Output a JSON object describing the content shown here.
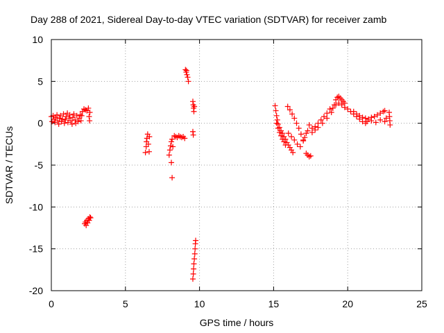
{
  "chart_data": {
    "type": "scatter",
    "title": "Day 288 of 2021, Sidereal Day-to-day VTEC variation (SDTVAR) for receiver zamb",
    "xlabel": "GPS time / hours",
    "ylabel": "SDTVAR / TECUs",
    "xlim": [
      0,
      25
    ],
    "ylim": [
      -20,
      10
    ],
    "xticks": [
      0,
      5,
      10,
      15,
      20,
      25
    ],
    "yticks": [
      -20,
      -15,
      -10,
      -5,
      0,
      5,
      10
    ],
    "grid": true,
    "marker": "+",
    "color": "#ff0000",
    "series": [
      {
        "name": "SDTVAR",
        "points": [
          [
            0.0,
            0.8
          ],
          [
            0.05,
            0.2
          ],
          [
            0.12,
            0.9
          ],
          [
            0.18,
            0.5
          ],
          [
            0.25,
            0.1
          ],
          [
            0.3,
            0.7
          ],
          [
            0.38,
            1.0
          ],
          [
            0.42,
            0.3
          ],
          [
            0.5,
            -0.1
          ],
          [
            0.55,
            0.6
          ],
          [
            0.62,
            0.9
          ],
          [
            0.68,
            0.2
          ],
          [
            0.75,
            0.5
          ],
          [
            0.82,
            1.1
          ],
          [
            0.88,
            0.0
          ],
          [
            0.95,
            0.4
          ],
          [
            1.0,
            0.8
          ],
          [
            1.08,
            1.2
          ],
          [
            1.12,
            0.1
          ],
          [
            1.2,
            0.6
          ],
          [
            1.25,
            1.0
          ],
          [
            1.32,
            0.3
          ],
          [
            1.4,
            -0.1
          ],
          [
            1.45,
            0.7
          ],
          [
            1.52,
            1.1
          ],
          [
            1.6,
            0.4
          ],
          [
            1.65,
            0.0
          ],
          [
            1.72,
            0.9
          ],
          [
            1.8,
            0.2
          ],
          [
            1.88,
            0.6
          ],
          [
            1.95,
            1.0
          ],
          [
            2.0,
            0.3
          ],
          [
            2.05,
            0.9
          ],
          [
            2.1,
            1.4
          ],
          [
            2.2,
            1.7
          ],
          [
            2.3,
            1.6
          ],
          [
            2.4,
            1.5
          ],
          [
            2.5,
            1.8
          ],
          [
            2.55,
            0.8
          ],
          [
            2.58,
            0.3
          ],
          [
            2.6,
            1.3
          ],
          [
            2.25,
            -12.0
          ],
          [
            2.3,
            -11.8
          ],
          [
            2.35,
            -12.2
          ],
          [
            2.4,
            -11.6
          ],
          [
            2.45,
            -11.9
          ],
          [
            2.5,
            -11.4
          ],
          [
            2.55,
            -11.6
          ],
          [
            2.6,
            -11.2
          ],
          [
            2.65,
            -11.3
          ],
          [
            6.35,
            -3.5
          ],
          [
            6.4,
            -2.8
          ],
          [
            6.42,
            -2.2
          ],
          [
            6.45,
            -1.8
          ],
          [
            6.5,
            -1.3
          ],
          [
            6.55,
            -2.5
          ],
          [
            6.6,
            -3.4
          ],
          [
            6.62,
            -1.6
          ],
          [
            7.95,
            -3.8
          ],
          [
            8.0,
            -3.2
          ],
          [
            8.05,
            -2.7
          ],
          [
            8.1,
            -2.2
          ],
          [
            8.15,
            -1.9
          ],
          [
            8.2,
            -2.8
          ],
          [
            8.1,
            -4.7
          ],
          [
            8.15,
            -6.5
          ],
          [
            8.3,
            -1.5
          ],
          [
            8.4,
            -1.6
          ],
          [
            8.5,
            -1.7
          ],
          [
            8.6,
            -1.5
          ],
          [
            8.7,
            -1.6
          ],
          [
            8.8,
            -1.7
          ],
          [
            8.9,
            -1.6
          ],
          [
            9.0,
            -1.8
          ],
          [
            9.05,
            6.4
          ],
          [
            9.1,
            6.1
          ],
          [
            9.15,
            5.8
          ],
          [
            9.2,
            5.5
          ],
          [
            9.25,
            5.0
          ],
          [
            9.12,
            6.3
          ],
          [
            9.55,
            2.6
          ],
          [
            9.58,
            2.2
          ],
          [
            9.6,
            1.8
          ],
          [
            9.62,
            1.4
          ],
          [
            9.65,
            2.0
          ],
          [
            9.55,
            -1.0
          ],
          [
            9.58,
            -1.4
          ],
          [
            9.55,
            -18.6
          ],
          [
            9.58,
            -18.0
          ],
          [
            9.6,
            -17.4
          ],
          [
            9.62,
            -16.8
          ],
          [
            9.65,
            -16.2
          ],
          [
            9.68,
            -15.6
          ],
          [
            9.7,
            -15.0
          ],
          [
            9.72,
            -14.4
          ],
          [
            9.74,
            -14.0
          ],
          [
            15.1,
            2.1
          ],
          [
            15.15,
            1.5
          ],
          [
            15.2,
            0.9
          ],
          [
            15.25,
            0.4
          ],
          [
            15.3,
            -0.1
          ],
          [
            15.4,
            -0.5
          ],
          [
            15.5,
            -0.9
          ],
          [
            15.6,
            -1.2
          ],
          [
            15.7,
            -1.6
          ],
          [
            15.8,
            -1.9
          ],
          [
            15.9,
            -2.3
          ],
          [
            16.0,
            -2.6
          ],
          [
            16.1,
            -2.9
          ],
          [
            16.2,
            -3.2
          ],
          [
            16.3,
            -3.5
          ],
          [
            15.2,
            0.0
          ],
          [
            15.3,
            -0.6
          ],
          [
            15.4,
            -1.1
          ],
          [
            15.5,
            -1.5
          ],
          [
            15.6,
            -1.9
          ],
          [
            15.7,
            -2.2
          ],
          [
            15.8,
            -2.6
          ],
          [
            15.95,
            2.0
          ],
          [
            16.1,
            1.6
          ],
          [
            16.25,
            1.1
          ],
          [
            16.4,
            0.6
          ],
          [
            16.55,
            0.0
          ],
          [
            16.7,
            -0.6
          ],
          [
            16.85,
            -1.3
          ],
          [
            17.0,
            -2.0
          ],
          [
            16.0,
            -1.2
          ],
          [
            16.2,
            -1.6
          ],
          [
            16.4,
            -2.0
          ],
          [
            16.6,
            -2.5
          ],
          [
            16.8,
            -2.8
          ],
          [
            17.0,
            -2.1
          ],
          [
            17.1,
            -1.7
          ],
          [
            17.2,
            -1.2
          ],
          [
            17.3,
            -0.9
          ],
          [
            17.2,
            -3.6
          ],
          [
            17.3,
            -3.8
          ],
          [
            17.4,
            -4.0
          ],
          [
            17.5,
            -3.9
          ],
          [
            17.4,
            -0.2
          ],
          [
            17.6,
            -0.6
          ],
          [
            17.8,
            -0.4
          ],
          [
            18.0,
            0.0
          ],
          [
            18.2,
            0.4
          ],
          [
            18.4,
            0.8
          ],
          [
            18.6,
            1.2
          ],
          [
            18.8,
            1.7
          ],
          [
            17.6,
            -1.1
          ],
          [
            17.8,
            -0.8
          ],
          [
            18.0,
            -0.5
          ],
          [
            18.3,
            0.0
          ],
          [
            18.6,
            0.6
          ],
          [
            18.9,
            1.3
          ],
          [
            19.1,
            2.2
          ],
          [
            19.2,
            2.8
          ],
          [
            19.3,
            3.1
          ],
          [
            19.4,
            3.2
          ],
          [
            19.5,
            3.0
          ],
          [
            19.6,
            2.8
          ],
          [
            19.7,
            2.6
          ],
          [
            19.8,
            2.4
          ],
          [
            19.0,
            1.8
          ],
          [
            19.2,
            2.2
          ],
          [
            19.4,
            2.4
          ],
          [
            19.6,
            2.2
          ],
          [
            19.8,
            1.9
          ],
          [
            20.0,
            1.7
          ],
          [
            20.2,
            1.4
          ],
          [
            20.4,
            1.1
          ],
          [
            20.6,
            0.8
          ],
          [
            20.8,
            0.5
          ],
          [
            21.0,
            0.2
          ],
          [
            21.2,
            0.0
          ],
          [
            20.4,
            1.4
          ],
          [
            20.6,
            1.1
          ],
          [
            20.8,
            0.9
          ],
          [
            21.0,
            0.7
          ],
          [
            21.2,
            0.6
          ],
          [
            21.4,
            0.5
          ],
          [
            21.6,
            0.7
          ],
          [
            21.8,
            0.8
          ],
          [
            22.0,
            1.0
          ],
          [
            22.2,
            1.2
          ],
          [
            22.4,
            1.4
          ],
          [
            22.5,
            1.5
          ],
          [
            21.3,
            0.2
          ],
          [
            21.6,
            0.3
          ],
          [
            21.9,
            0.1
          ],
          [
            22.2,
            0.4
          ],
          [
            22.5,
            0.2
          ],
          [
            22.6,
            0.6
          ],
          [
            22.8,
            1.3
          ],
          [
            22.82,
            0.8
          ],
          [
            22.84,
            0.3
          ],
          [
            22.86,
            -0.2
          ]
        ]
      }
    ]
  }
}
